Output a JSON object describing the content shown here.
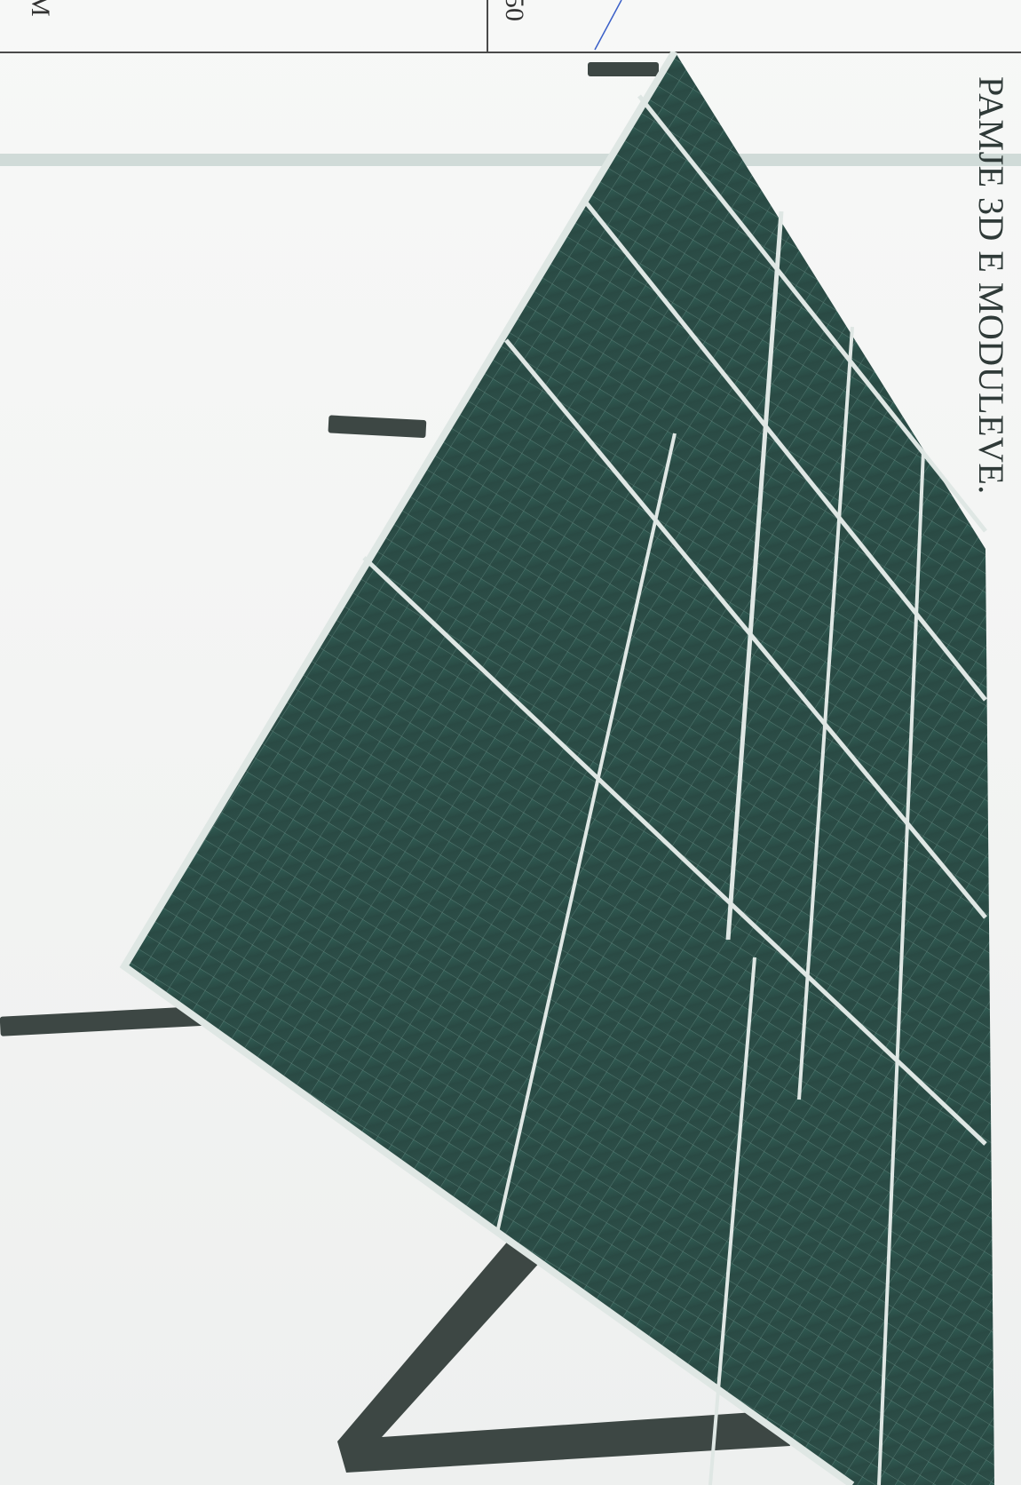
{
  "document": {
    "caption": "PAMJE 3D E MODULEVE.",
    "title_block": {
      "left_fragment": "M",
      "middle_fragment": "50"
    }
  },
  "colors": {
    "panel_cell": "#2c4d46",
    "panel_frame": "#dfe7e4",
    "structure": "#3d4744",
    "ground_band": "#b8c8c4",
    "annotation_line": "#3a5fc8"
  },
  "panels": {
    "rows": 3,
    "columns": 4
  }
}
